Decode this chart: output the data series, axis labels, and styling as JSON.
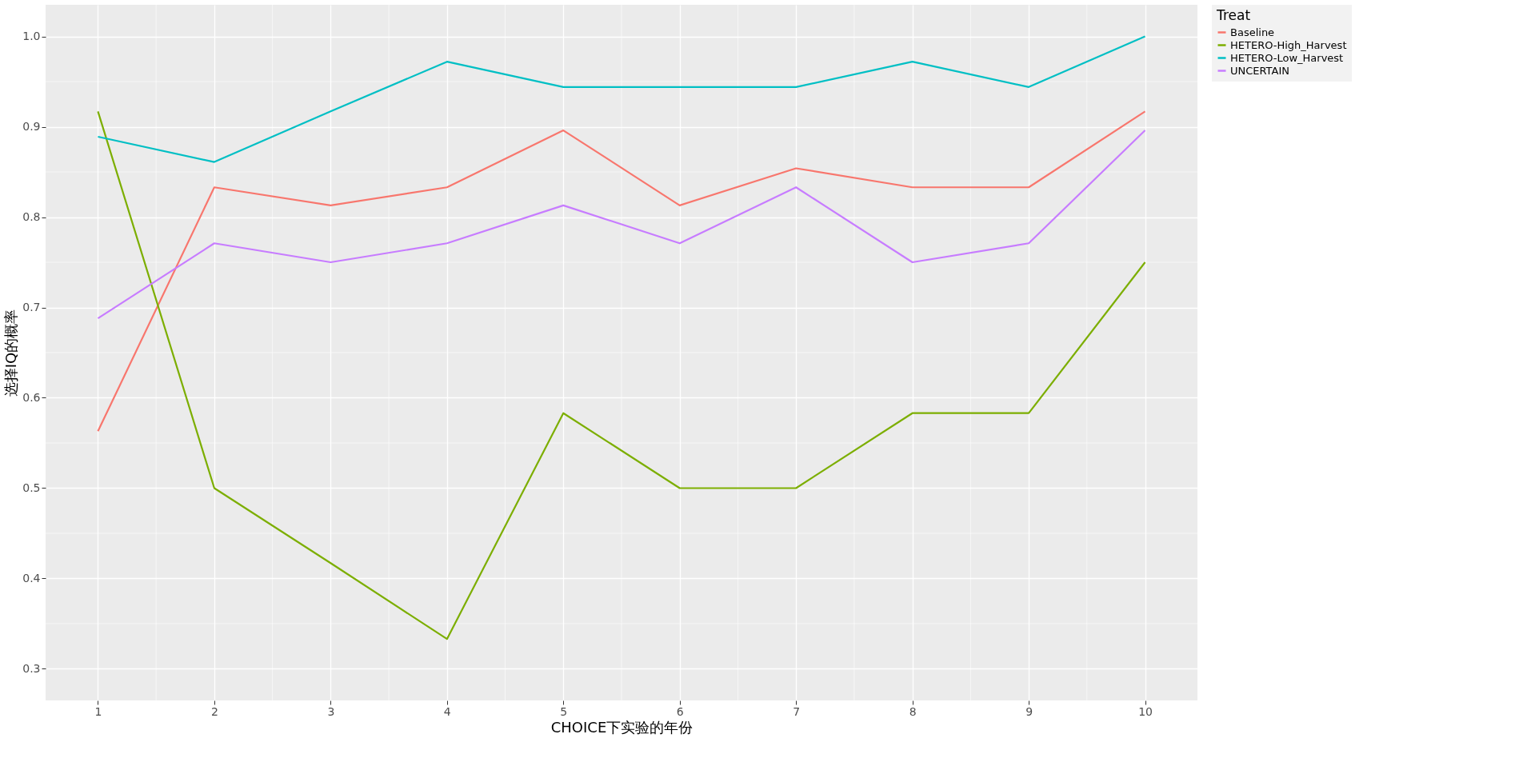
{
  "chart_data": {
    "type": "line",
    "xlabel": "CHOICE下实验的年份",
    "ylabel": "选择IQ的概率",
    "legend_title": "Treat",
    "x": [
      1,
      2,
      3,
      4,
      5,
      6,
      7,
      8,
      9,
      10
    ],
    "series": [
      {
        "name": "Baseline",
        "color": "#f8766d",
        "values": [
          0.563,
          0.833,
          0.813,
          0.833,
          0.896,
          0.813,
          0.854,
          0.833,
          0.833,
          0.917
        ]
      },
      {
        "name": "HETERO-High_Harvest",
        "color": "#7cae00",
        "values": [
          0.917,
          0.5,
          0.417,
          0.333,
          0.583,
          0.5,
          0.5,
          0.583,
          0.583,
          0.75
        ]
      },
      {
        "name": "HETERO-Low_Harvest",
        "color": "#00bfc4",
        "values": [
          0.889,
          0.861,
          0.917,
          0.972,
          0.944,
          0.944,
          0.944,
          0.972,
          0.944,
          1.0
        ]
      },
      {
        "name": "UNCERTAIN",
        "color": "#c77cff",
        "values": [
          0.688,
          0.771,
          0.75,
          0.771,
          0.813,
          0.771,
          0.833,
          0.75,
          0.771,
          0.896
        ]
      }
    ],
    "xlim": [
      0.55,
      10.45
    ],
    "xticks": [
      1,
      2,
      3,
      4,
      5,
      6,
      7,
      8,
      9,
      10
    ],
    "ylim": [
      0.265,
      1.035
    ],
    "yticks": [
      0.3,
      0.4,
      0.5,
      0.6,
      0.7,
      0.8,
      0.9,
      {
        "value": 1,
        "label": "1.0"
      }
    ],
    "grid": true,
    "legend": "right",
    "marker": "none",
    "line_style": "solid"
  }
}
